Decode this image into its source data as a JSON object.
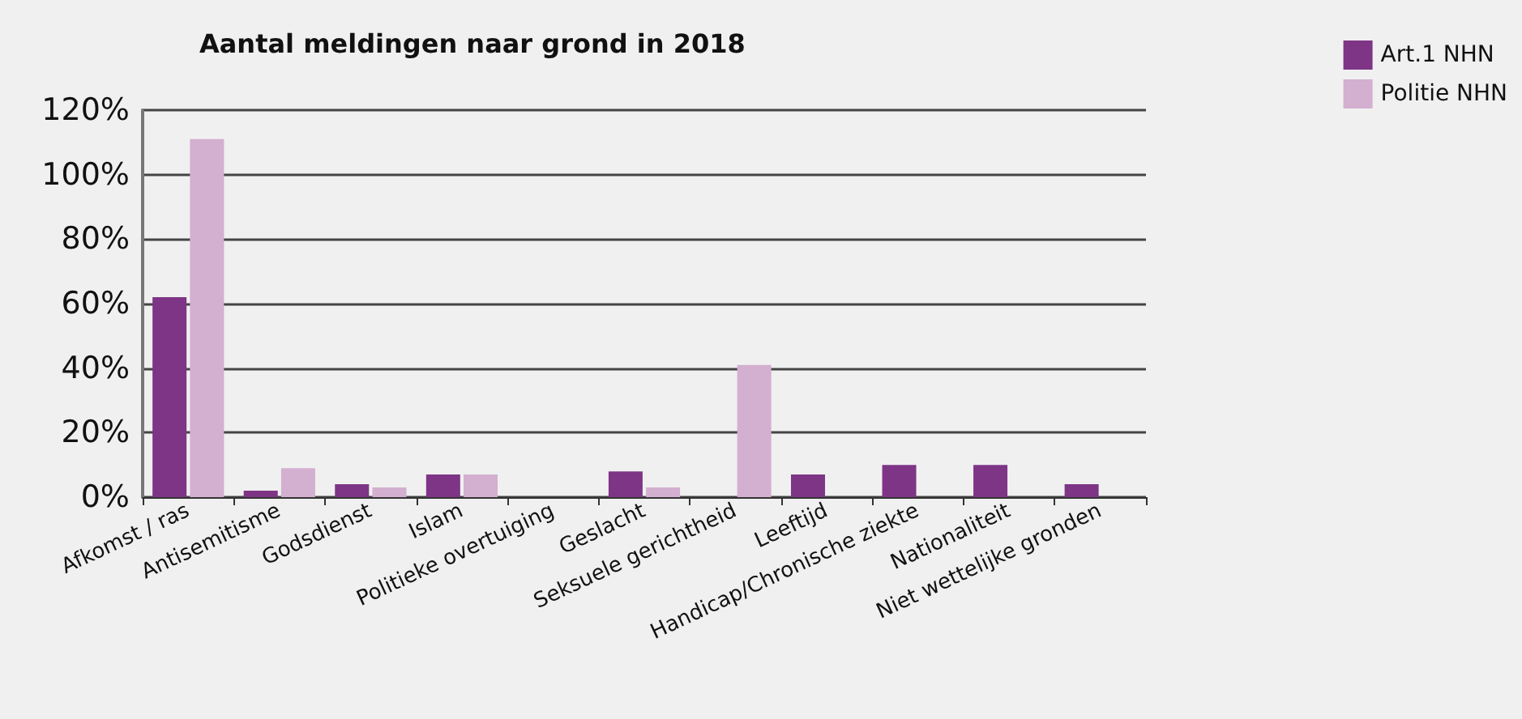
{
  "chart_data": {
    "type": "bar",
    "title": "Aantal meldingen naar grond in 2018",
    "categories": [
      "Afkomst / ras",
      "Antisemitisme",
      "Godsdienst",
      "Islam",
      "Politieke overtuiging",
      "Geslacht",
      "Seksuele gerichtheid",
      "Leeftijd",
      "Handicap/Chronische ziekte",
      "Nationaliteit",
      "Niet wettelijke gronden"
    ],
    "series": [
      {
        "name": "Art.1 NHN",
        "color": "#7e3586",
        "values": [
          62,
          2,
          4,
          7,
          0,
          8,
          0,
          7,
          10,
          10,
          4
        ]
      },
      {
        "name": "Politie NHN",
        "color": "#d3afd0",
        "values": [
          111,
          9,
          3,
          7,
          0,
          3,
          41,
          0,
          0,
          0,
          0
        ]
      }
    ],
    "ylim": [
      0,
      120
    ],
    "yticks": [
      {
        "value": 0,
        "label": "0%"
      },
      {
        "value": 20,
        "label": "20%"
      },
      {
        "value": 40,
        "label": "40%"
      },
      {
        "value": 60,
        "label": "60%"
      },
      {
        "value": 80,
        "label": "80%"
      },
      {
        "value": 100,
        "label": "100%"
      },
      {
        "value": 120,
        "label": "120%"
      }
    ],
    "grid": "y",
    "legend": "top right"
  }
}
